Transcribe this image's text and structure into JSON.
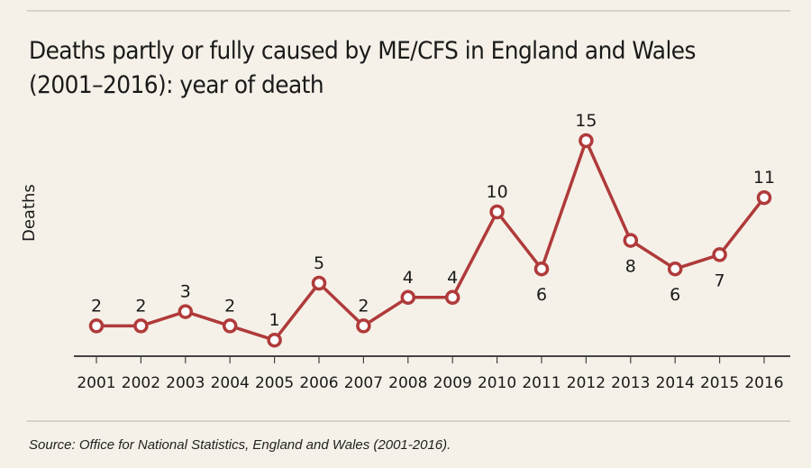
{
  "chart_data": {
    "type": "line",
    "title": "Deaths partly or fully caused by ME/CFS in England and Wales (2001–2016): year of death",
    "xlabel": "",
    "ylabel": "Deaths",
    "categories": [
      "2001",
      "2002",
      "2003",
      "2004",
      "2005",
      "2006",
      "2007",
      "2008",
      "2009",
      "2010",
      "2011",
      "2012",
      "2013",
      "2014",
      "2015",
      "2016"
    ],
    "values": [
      2,
      2,
      3,
      2,
      1,
      5,
      2,
      4,
      4,
      10,
      6,
      15,
      8,
      6,
      7,
      11
    ],
    "label_below": [
      false,
      false,
      false,
      false,
      false,
      false,
      false,
      false,
      false,
      false,
      true,
      false,
      true,
      true,
      true,
      false
    ],
    "grid": false,
    "line_color": "#b03a3a",
    "marker_fill": "#ffffff"
  },
  "source": "Source: Office for National Statistics, England and Wales (2001-2016)."
}
